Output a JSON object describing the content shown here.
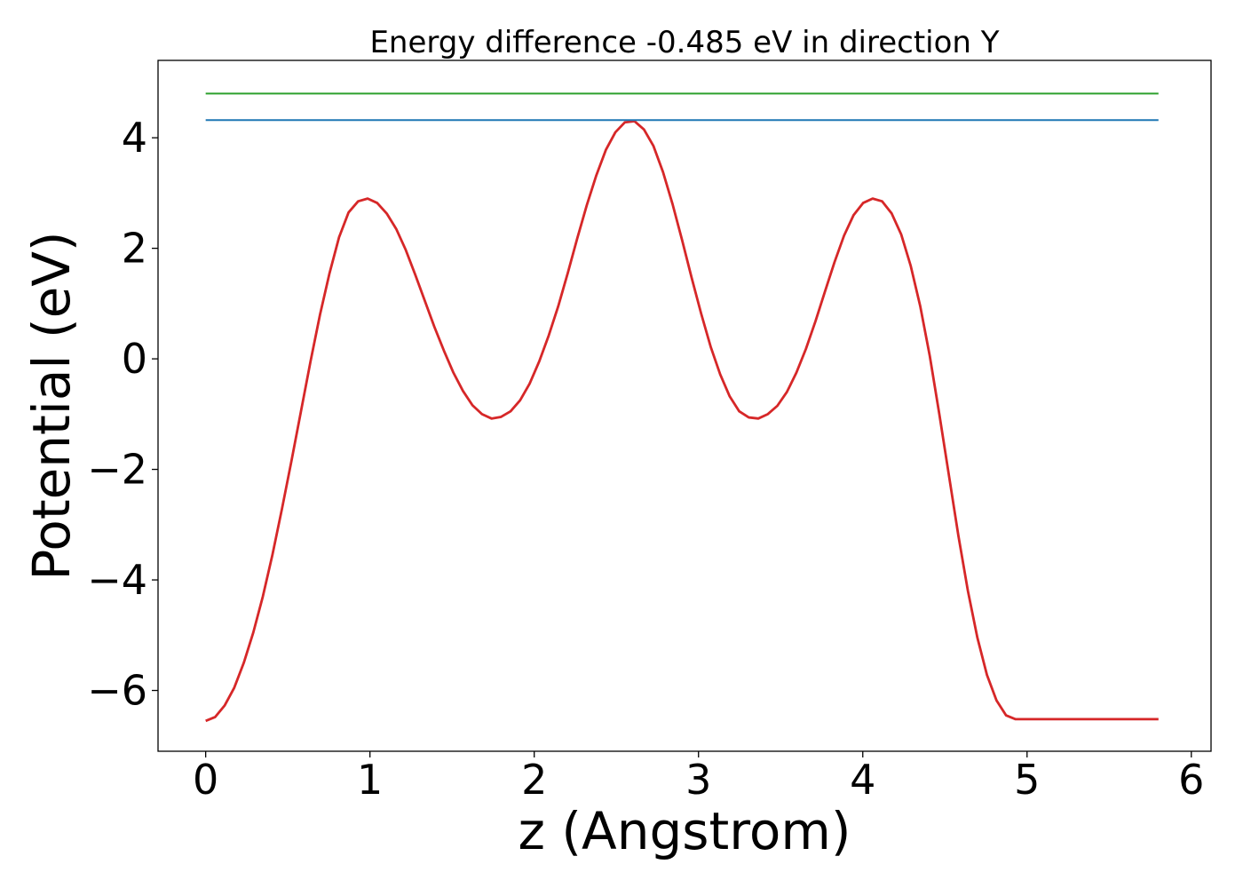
{
  "chart_data": {
    "type": "line",
    "title": "Energy difference -0.485 eV in direction Y",
    "xlabel": "z (Angstrom)",
    "ylabel": "Potential (eV)",
    "xlim": [
      -0.29,
      6.12
    ],
    "ylim": [
      -7.1,
      5.4
    ],
    "xticks": [
      0,
      1,
      2,
      3,
      4,
      5,
      6
    ],
    "xtick_labels": [
      "0",
      "1",
      "2",
      "3",
      "4",
      "5",
      "6"
    ],
    "yticks": [
      -6,
      -4,
      -2,
      0,
      2,
      4
    ],
    "ytick_labels": [
      "−6",
      "−4",
      "−2",
      "0",
      "2",
      "4"
    ],
    "grid": false,
    "legend": "none",
    "series": [
      {
        "color": "#d62728",
        "x": [
          0.0,
          0.058,
          0.116,
          0.174,
          0.232,
          0.29,
          0.348,
          0.406,
          0.464,
          0.522,
          0.58,
          0.638,
          0.696,
          0.754,
          0.812,
          0.87,
          0.928,
          0.986,
          1.044,
          1.102,
          1.16,
          1.218,
          1.276,
          1.334,
          1.392,
          1.45,
          1.508,
          1.566,
          1.624,
          1.682,
          1.74,
          1.798,
          1.856,
          1.914,
          1.972,
          2.03,
          2.088,
          2.146,
          2.204,
          2.262,
          2.32,
          2.378,
          2.436,
          2.494,
          2.552,
          2.61,
          2.668,
          2.726,
          2.784,
          2.842,
          2.9,
          2.958,
          3.016,
          3.074,
          3.132,
          3.19,
          3.248,
          3.306,
          3.364,
          3.422,
          3.48,
          3.538,
          3.596,
          3.654,
          3.712,
          3.77,
          3.828,
          3.886,
          3.944,
          4.002,
          4.06,
          4.118,
          4.176,
          4.234,
          4.292,
          4.35,
          4.408,
          4.466,
          4.524,
          4.582,
          4.64,
          4.698,
          4.756,
          4.814,
          4.872,
          4.93,
          4.988,
          5.046,
          5.104,
          5.162,
          5.22,
          5.278,
          5.336,
          5.394,
          5.452,
          5.51,
          5.568,
          5.626,
          5.684,
          5.742,
          5.8
        ],
        "values": [
          -6.55,
          -6.48,
          -6.27,
          -5.95,
          -5.5,
          -4.95,
          -4.3,
          -3.55,
          -2.72,
          -1.85,
          -0.95,
          -0.05,
          0.8,
          1.55,
          2.2,
          2.65,
          2.85,
          2.9,
          2.82,
          2.63,
          2.35,
          1.97,
          1.52,
          1.05,
          0.58,
          0.15,
          -0.25,
          -0.58,
          -0.84,
          -1.0,
          -1.08,
          -1.05,
          -0.95,
          -0.75,
          -0.45,
          -0.05,
          0.42,
          0.95,
          1.55,
          2.18,
          2.78,
          3.32,
          3.78,
          4.1,
          4.28,
          4.3,
          4.15,
          3.85,
          3.38,
          2.8,
          2.15,
          1.47,
          0.82,
          0.22,
          -0.28,
          -0.68,
          -0.95,
          -1.06,
          -1.08,
          -1.0,
          -0.85,
          -0.6,
          -0.25,
          0.18,
          0.68,
          1.22,
          1.75,
          2.23,
          2.6,
          2.82,
          2.9,
          2.85,
          2.63,
          2.25,
          1.68,
          0.95,
          0.05,
          -1.0,
          -2.1,
          -3.2,
          -4.2,
          -5.05,
          -5.72,
          -6.18,
          -6.45,
          -6.52,
          -6.52,
          -6.52,
          -6.52,
          -6.52,
          -6.52,
          -6.52,
          -6.52,
          -6.52,
          -6.52,
          -6.52,
          -6.52,
          -6.52,
          -6.52,
          -6.52,
          -6.52
        ]
      },
      {
        "color": "#1f77b4",
        "x": [
          0.0,
          5.8
        ],
        "values": [
          4.32,
          4.32
        ]
      },
      {
        "color": "#2ca02c",
        "x": [
          0.0,
          5.8
        ],
        "values": [
          4.8,
          4.8
        ]
      }
    ]
  }
}
